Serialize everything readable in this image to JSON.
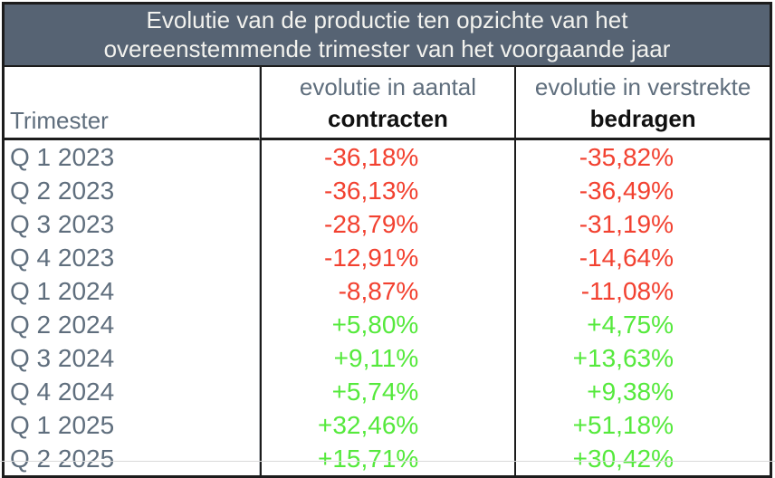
{
  "title": {
    "line1": "Evolutie van de productie ten opzichte van het",
    "line2": "overeenstemmende trimester van het voorgaande jaar"
  },
  "columns": {
    "trimester": {
      "label": "Trimester"
    },
    "contracts": {
      "line1": "evolutie in aantal",
      "line2": "contracten"
    },
    "amounts": {
      "line1": "evolutie in verstrekte",
      "line2": "bedragen"
    }
  },
  "table": {
    "rows": [
      {
        "label": "Q 1 2023",
        "contracts": "-36,18%",
        "amounts": "-35,82%"
      },
      {
        "label": "Q 2 2023",
        "contracts": "-36,13%",
        "amounts": "-36,49%"
      },
      {
        "label": "Q 3 2023",
        "contracts": "-28,79%",
        "amounts": "-31,19%"
      },
      {
        "label": "Q 4 2023",
        "contracts": "-12,91%",
        "amounts": "-14,64%"
      },
      {
        "label": "Q 1 2024",
        "contracts": "-8,87%",
        "amounts": "-11,08%"
      },
      {
        "label": "Q 2 2024",
        "contracts": "+5,80%",
        "amounts": "+4,75%"
      },
      {
        "label": "Q 3 2024",
        "contracts": "+9,11%",
        "amounts": "+13,63%"
      },
      {
        "label": "Q 4 2024",
        "contracts": "+5,74%",
        "amounts": "+9,38%"
      },
      {
        "label": "Q 1 2025",
        "contracts": "+32,46%",
        "amounts": "+51,18%"
      },
      {
        "label": "Q 2 2025",
        "contracts": "+15,71%",
        "amounts": "+30,42%"
      }
    ]
  },
  "colors": {
    "negative": "#f24130",
    "positive": "#55e93c",
    "title_background": "#566373",
    "title_text": "#f2f2ee",
    "muted_text": "#5f6e7d",
    "border": "#1c1c1c"
  },
  "chart_data": {
    "type": "table",
    "title": "Evolutie van de productie ten opzichte van het overeenstemmende trimester van het voorgaande jaar",
    "columns": [
      "Trimester",
      "evolutie in aantal contracten",
      "evolutie in verstrekte bedragen"
    ],
    "rows": [
      [
        "Q 1 2023",
        -36.18,
        -35.82
      ],
      [
        "Q 2 2023",
        -36.13,
        -36.49
      ],
      [
        "Q 3 2023",
        -28.79,
        -31.19
      ],
      [
        "Q 4 2023",
        -12.91,
        -14.64
      ],
      [
        "Q 1 2024",
        -8.87,
        -11.08
      ],
      [
        "Q 2 2024",
        5.8,
        4.75
      ],
      [
        "Q 3 2024",
        9.11,
        13.63
      ],
      [
        "Q 4 2024",
        5.74,
        9.38
      ],
      [
        "Q 1 2025",
        32.46,
        51.18
      ],
      [
        "Q 2 2025",
        15.71,
        30.42
      ]
    ],
    "units": "percent",
    "value_color_rule": "negative values red, positive values green"
  }
}
